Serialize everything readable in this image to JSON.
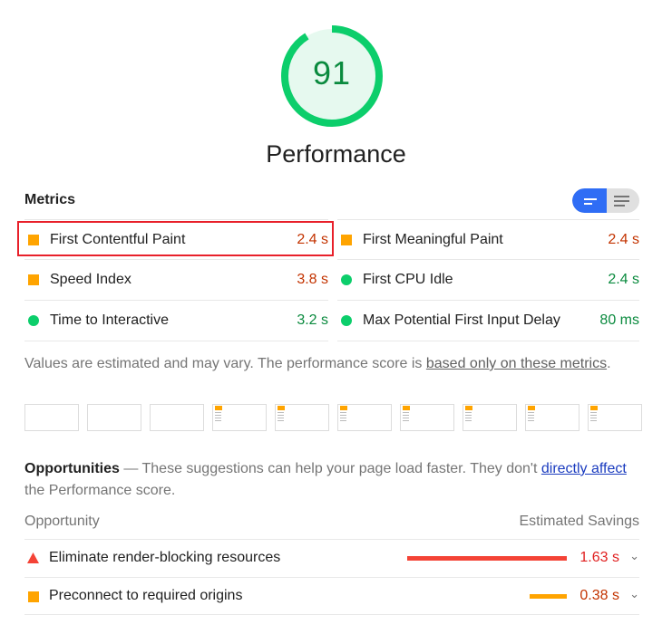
{
  "gauge": {
    "score": "91",
    "fraction": 0.91,
    "color": "#0cce6b",
    "fill": "#e6f9ef"
  },
  "category_title": "Performance",
  "metrics": {
    "title": "Metrics",
    "toggle": {
      "active": "compact-view",
      "inactive": "expanded-view"
    },
    "items": [
      {
        "label": "First Contentful Paint",
        "value": "2.4 s",
        "rating": "average"
      },
      {
        "label": "First Meaningful Paint",
        "value": "2.4 s",
        "rating": "average"
      },
      {
        "label": "Speed Index",
        "value": "3.8 s",
        "rating": "average"
      },
      {
        "label": "First CPU Idle",
        "value": "2.4 s",
        "rating": "pass"
      },
      {
        "label": "Time to Interactive",
        "value": "3.2 s",
        "rating": "pass"
      },
      {
        "label": "Max Potential First Input Delay",
        "value": "80 ms",
        "rating": "pass"
      }
    ],
    "note": "Values are estimated and may vary. The performance score is ",
    "note_link": "based only on these metrics",
    "note_end": "."
  },
  "filmstrip": {
    "frames": [
      false,
      false,
      false,
      true,
      true,
      true,
      true,
      true,
      true,
      true
    ]
  },
  "opportunities": {
    "title": "Opportunities",
    "desc": " — These suggestions can help your page load faster. They don't ",
    "link": "directly affect",
    "desc_end": " the Performance score.",
    "col_opportunity": "Opportunity",
    "col_savings": "Estimated Savings",
    "items": [
      {
        "label": "Eliminate render-blocking resources",
        "savings": "1.63 s",
        "seconds": 1.63,
        "rating": "fail",
        "color": "#f44336",
        "text_color": "#e01f1f"
      },
      {
        "label": "Preconnect to required origins",
        "savings": "0.38 s",
        "seconds": 0.38,
        "rating": "average",
        "color": "#ffa400",
        "text_color": "#c33300"
      }
    ]
  }
}
